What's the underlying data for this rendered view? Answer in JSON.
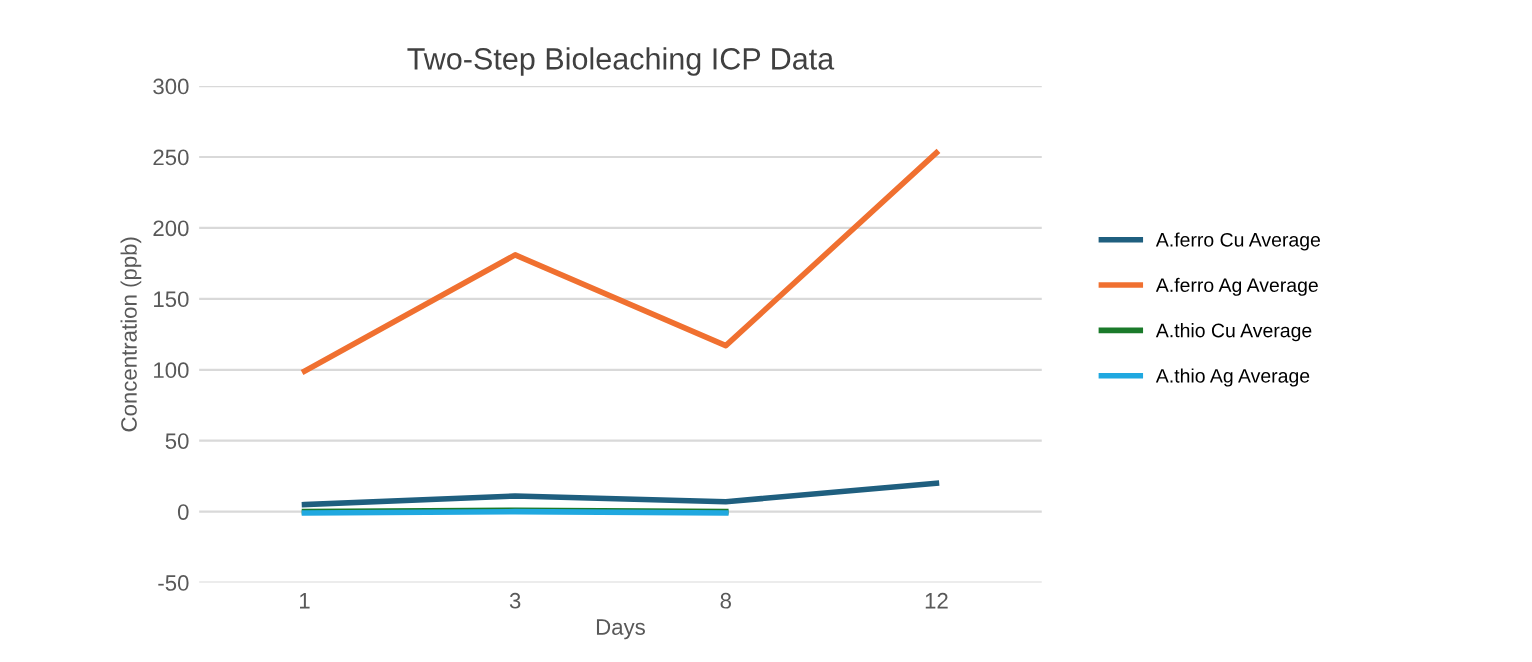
{
  "chart_data": {
    "type": "line",
    "title": "Two-Step Bioleaching ICP Data",
    "xlabel": "Days",
    "ylabel": "Concentration (ppb)",
    "categories": [
      "1",
      "3",
      "8",
      "12"
    ],
    "series": [
      {
        "name": "A.ferro Cu Average",
        "color": "#1f5f7f",
        "values": [
          5,
          11,
          7,
          20
        ]
      },
      {
        "name": "A.ferro Ag Average",
        "color": "#f07030",
        "values": [
          99,
          181,
          117,
          253
        ]
      },
      {
        "name": "A.thio Cu Average",
        "color": "#1a7a2a",
        "values": [
          0,
          1,
          0,
          null
        ]
      },
      {
        "name": "A.thio Ag Average",
        "color": "#20a8e0",
        "values": [
          -1,
          0,
          -1,
          null
        ]
      }
    ],
    "ylim": [
      -50,
      300
    ],
    "yticks": [
      -50,
      0,
      50,
      100,
      150,
      200,
      250,
      300
    ],
    "grid": "y",
    "legend": "right",
    "marker": "none",
    "line_style": "solid"
  }
}
